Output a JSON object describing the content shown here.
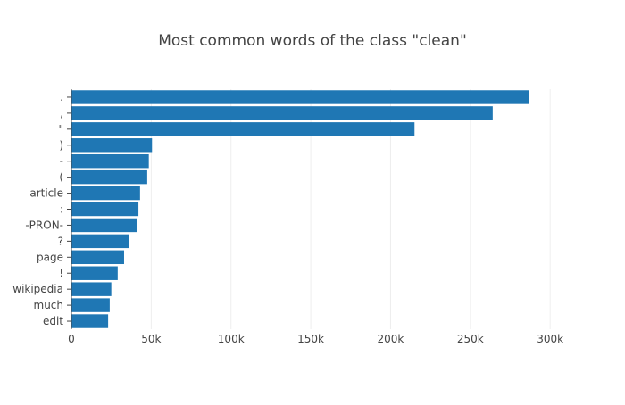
{
  "chart_data": {
    "type": "bar",
    "orientation": "horizontal",
    "title": "Most common words of the class \"clean\"",
    "xlabel": "",
    "ylabel": "",
    "categories": [
      ".",
      ",",
      "\"",
      ")",
      "-",
      "(",
      "article",
      ":",
      "-PRON-",
      "?",
      "page",
      "!",
      "wikipedia",
      "much",
      "edit"
    ],
    "values": [
      287000,
      264000,
      215000,
      50500,
      48500,
      47500,
      43000,
      42000,
      41000,
      36000,
      33000,
      29000,
      25000,
      24000,
      23000
    ],
    "xlim": [
      0,
      315000
    ],
    "x_ticks": [
      0,
      50000,
      100000,
      150000,
      200000,
      250000,
      300000
    ],
    "x_tick_labels": [
      "0",
      "50k",
      "100k",
      "150k",
      "200k",
      "250k",
      "300k"
    ],
    "grid": "vertical",
    "legend": false,
    "bar_color": "#1f77b4"
  }
}
